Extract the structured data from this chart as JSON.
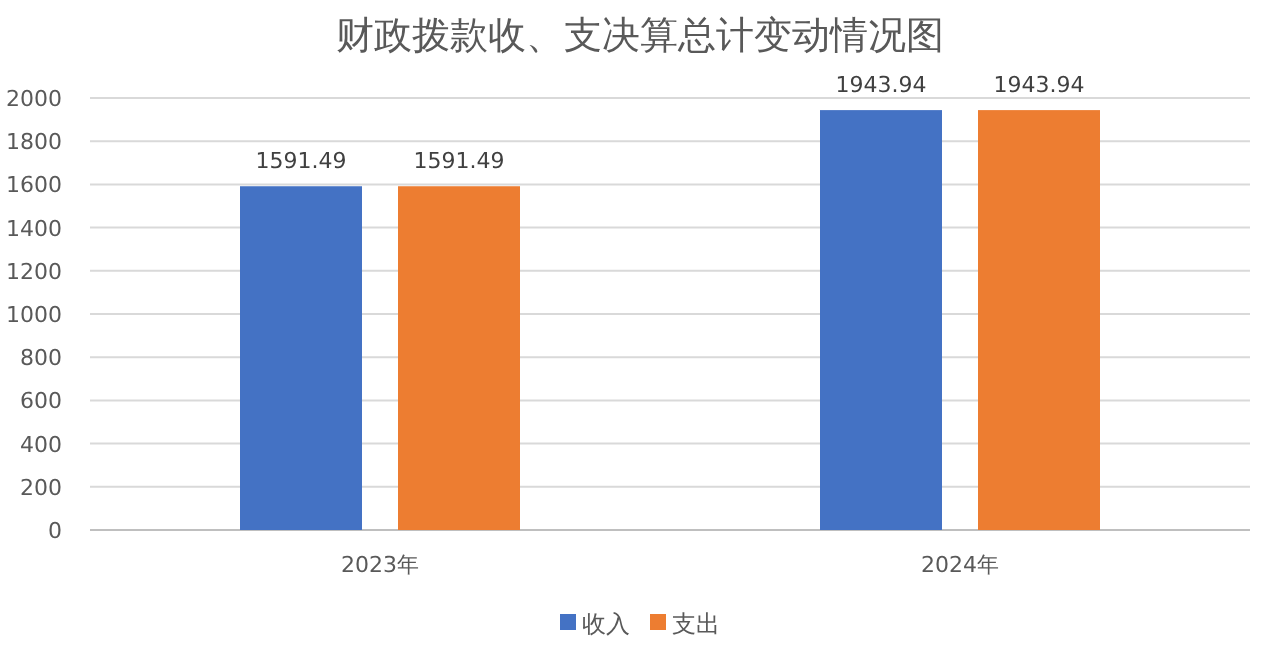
{
  "chart_data": {
    "type": "bar",
    "title": "财政拨款收、支决算总计变动情况图",
    "categories": [
      "2023年",
      "2024年"
    ],
    "series": [
      {
        "name": "收入",
        "color": "#4472c4",
        "values": [
          1591.49,
          1943.94
        ]
      },
      {
        "name": "支出",
        "color": "#ed7d31",
        "values": [
          1591.49,
          1943.94
        ]
      }
    ],
    "ylim": [
      0,
      2000
    ],
    "yticks": [
      0,
      200,
      400,
      600,
      800,
      1000,
      1200,
      1400,
      1600,
      1800,
      2000
    ],
    "grid": "y",
    "data_labels": true,
    "legend": "bottom"
  }
}
